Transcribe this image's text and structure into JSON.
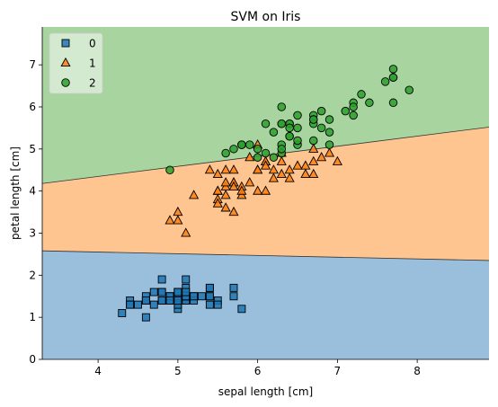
{
  "chart_data": {
    "type": "scatter",
    "title": "SVM on Iris",
    "xlabel": "sepal length [cm]",
    "ylabel": "petal length [cm]",
    "xlim": [
      3.3,
      8.9
    ],
    "ylim": [
      0,
      7.9
    ],
    "xticks": [
      4,
      5,
      6,
      7,
      8
    ],
    "yticks": [
      0,
      1,
      2,
      3,
      4,
      5,
      6,
      7
    ],
    "grid": false,
    "legend_position": "top-left",
    "decision_regions": [
      {
        "class": "0",
        "color": "#99bfdc",
        "boundary_above": [
          [
            3.3,
            2.58
          ],
          [
            8.9,
            2.35
          ]
        ]
      },
      {
        "class": "1",
        "color": "#fec590",
        "boundary_above": [
          [
            3.3,
            4.18
          ],
          [
            8.9,
            5.52
          ]
        ]
      },
      {
        "class": "2",
        "color": "#a8d4a0"
      }
    ],
    "series": [
      {
        "name": "0",
        "marker": "square",
        "color": "#1f77b4",
        "points": [
          [
            5.1,
            1.4
          ],
          [
            4.9,
            1.4
          ],
          [
            4.7,
            1.3
          ],
          [
            4.6,
            1.5
          ],
          [
            5.0,
            1.4
          ],
          [
            5.4,
            1.7
          ],
          [
            4.6,
            1.4
          ],
          [
            5.0,
            1.5
          ],
          [
            4.4,
            1.4
          ],
          [
            4.9,
            1.5
          ],
          [
            5.4,
            1.5
          ],
          [
            4.8,
            1.6
          ],
          [
            4.8,
            1.4
          ],
          [
            4.3,
            1.1
          ],
          [
            5.8,
            1.2
          ],
          [
            5.7,
            1.5
          ],
          [
            5.4,
            1.3
          ],
          [
            5.1,
            1.4
          ],
          [
            5.7,
            1.7
          ],
          [
            5.1,
            1.5
          ],
          [
            5.4,
            1.7
          ],
          [
            5.1,
            1.5
          ],
          [
            4.6,
            1.0
          ],
          [
            5.1,
            1.7
          ],
          [
            4.8,
            1.9
          ],
          [
            5.0,
            1.6
          ],
          [
            5.0,
            1.6
          ],
          [
            5.2,
            1.5
          ],
          [
            5.2,
            1.4
          ],
          [
            4.7,
            1.6
          ],
          [
            4.8,
            1.6
          ],
          [
            5.4,
            1.5
          ],
          [
            5.2,
            1.5
          ],
          [
            5.5,
            1.4
          ],
          [
            4.9,
            1.5
          ],
          [
            5.0,
            1.2
          ],
          [
            5.5,
            1.3
          ],
          [
            4.9,
            1.4
          ],
          [
            4.4,
            1.3
          ],
          [
            5.1,
            1.5
          ],
          [
            5.0,
            1.3
          ],
          [
            4.5,
            1.3
          ],
          [
            4.4,
            1.3
          ],
          [
            5.0,
            1.6
          ],
          [
            5.1,
            1.9
          ],
          [
            4.8,
            1.4
          ],
          [
            5.1,
            1.6
          ],
          [
            4.6,
            1.4
          ],
          [
            5.3,
            1.5
          ],
          [
            5.0,
            1.4
          ]
        ]
      },
      {
        "name": "1",
        "marker": "triangle",
        "color": "#ff7f0e",
        "points": [
          [
            7.0,
            4.7
          ],
          [
            6.4,
            4.5
          ],
          [
            6.9,
            4.9
          ],
          [
            5.5,
            4.0
          ],
          [
            6.5,
            4.6
          ],
          [
            5.7,
            4.5
          ],
          [
            6.3,
            4.7
          ],
          [
            4.9,
            3.3
          ],
          [
            6.6,
            4.6
          ],
          [
            5.2,
            3.9
          ],
          [
            5.0,
            3.5
          ],
          [
            5.9,
            4.2
          ],
          [
            6.0,
            4.0
          ],
          [
            6.1,
            4.7
          ],
          [
            5.6,
            3.6
          ],
          [
            6.7,
            4.4
          ],
          [
            5.6,
            4.5
          ],
          [
            5.8,
            4.1
          ],
          [
            6.2,
            4.5
          ],
          [
            5.6,
            3.9
          ],
          [
            5.9,
            4.8
          ],
          [
            6.1,
            4.0
          ],
          [
            6.3,
            4.9
          ],
          [
            6.1,
            4.7
          ],
          [
            6.4,
            4.3
          ],
          [
            6.6,
            4.4
          ],
          [
            6.8,
            4.8
          ],
          [
            6.7,
            5.0
          ],
          [
            6.0,
            4.5
          ],
          [
            5.7,
            3.5
          ],
          [
            5.5,
            3.8
          ],
          [
            5.5,
            3.7
          ],
          [
            5.8,
            3.9
          ],
          [
            6.0,
            5.1
          ],
          [
            5.4,
            4.5
          ],
          [
            6.0,
            4.5
          ],
          [
            6.7,
            4.7
          ],
          [
            6.3,
            4.4
          ],
          [
            5.6,
            4.1
          ],
          [
            5.5,
            4.0
          ],
          [
            5.5,
            4.4
          ],
          [
            6.1,
            4.6
          ],
          [
            5.8,
            4.0
          ],
          [
            5.0,
            3.3
          ],
          [
            5.6,
            4.2
          ],
          [
            5.7,
            4.2
          ],
          [
            5.7,
            4.2
          ],
          [
            6.2,
            4.3
          ],
          [
            5.1,
            3.0
          ],
          [
            5.7,
            4.1
          ]
        ]
      },
      {
        "name": "2",
        "marker": "circle",
        "color": "#2ca02c",
        "points": [
          [
            6.3,
            6.0
          ],
          [
            5.8,
            5.1
          ],
          [
            7.1,
            5.9
          ],
          [
            6.3,
            5.6
          ],
          [
            6.5,
            5.8
          ],
          [
            7.6,
            6.6
          ],
          [
            4.9,
            4.5
          ],
          [
            7.3,
            6.3
          ],
          [
            6.7,
            5.8
          ],
          [
            7.2,
            6.1
          ],
          [
            6.5,
            5.1
          ],
          [
            6.4,
            5.3
          ],
          [
            6.8,
            5.5
          ],
          [
            5.7,
            5.0
          ],
          [
            5.8,
            5.1
          ],
          [
            6.4,
            5.3
          ],
          [
            6.5,
            5.5
          ],
          [
            7.7,
            6.7
          ],
          [
            7.7,
            6.9
          ],
          [
            6.0,
            5.0
          ],
          [
            6.9,
            5.7
          ],
          [
            5.6,
            4.9
          ],
          [
            7.7,
            6.7
          ],
          [
            6.3,
            4.9
          ],
          [
            6.7,
            5.7
          ],
          [
            7.2,
            6.0
          ],
          [
            6.2,
            4.8
          ],
          [
            6.1,
            4.9
          ],
          [
            6.4,
            5.6
          ],
          [
            7.2,
            5.8
          ],
          [
            7.4,
            6.1
          ],
          [
            7.9,
            6.4
          ],
          [
            6.4,
            5.6
          ],
          [
            6.3,
            5.1
          ],
          [
            6.1,
            5.6
          ],
          [
            7.7,
            6.1
          ],
          [
            6.3,
            5.6
          ],
          [
            6.4,
            5.5
          ],
          [
            6.0,
            4.8
          ],
          [
            6.9,
            5.4
          ],
          [
            6.7,
            5.6
          ],
          [
            6.9,
            5.1
          ],
          [
            5.8,
            5.1
          ],
          [
            6.8,
            5.9
          ],
          [
            6.7,
            5.7
          ],
          [
            6.7,
            5.2
          ],
          [
            6.3,
            5.0
          ],
          [
            6.5,
            5.2
          ],
          [
            6.2,
            5.4
          ],
          [
            5.9,
            5.1
          ]
        ]
      }
    ]
  }
}
